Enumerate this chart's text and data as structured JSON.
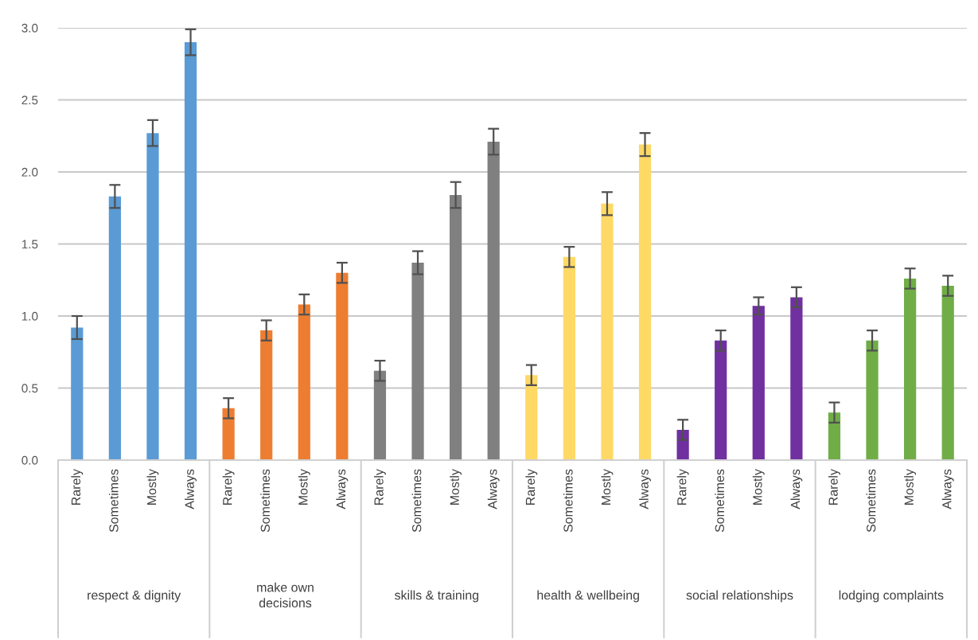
{
  "chart_data": {
    "type": "bar",
    "categories": [
      "Rarely",
      "Sometimes",
      "Mostly",
      "Always",
      "Rarely",
      "Sometimes",
      "Mostly",
      "Always",
      "Rarely",
      "Sometimes",
      "Mostly",
      "Always",
      "Rarely",
      "Sometimes",
      "Mostly",
      "Always",
      "Rarely",
      "Sometimes",
      "Mostly",
      "Always",
      "Rarely",
      "Sometimes",
      "Mostly",
      "Always"
    ],
    "values": [
      0.92,
      1.83,
      2.27,
      2.9,
      0.36,
      0.9,
      1.08,
      1.3,
      0.62,
      1.37,
      1.84,
      2.21,
      0.59,
      1.41,
      1.78,
      2.19,
      0.21,
      0.83,
      1.07,
      1.13,
      0.33,
      0.83,
      1.26,
      1.21
    ],
    "errors": [
      0.08,
      0.08,
      0.09,
      0.09,
      0.07,
      0.07,
      0.07,
      0.07,
      0.07,
      0.08,
      0.09,
      0.09,
      0.07,
      0.07,
      0.08,
      0.08,
      0.07,
      0.07,
      0.06,
      0.07,
      0.07,
      0.07,
      0.07,
      0.07
    ],
    "colors": [
      "#5b9bd5",
      "#5b9bd5",
      "#5b9bd5",
      "#5b9bd5",
      "#ed7d31",
      "#ed7d31",
      "#ed7d31",
      "#ed7d31",
      "#808080",
      "#808080",
      "#808080",
      "#808080",
      "#ffd966",
      "#ffd966",
      "#ffd966",
      "#ffd966",
      "#7030a0",
      "#7030a0",
      "#7030a0",
      "#7030a0",
      "#70ad47",
      "#70ad47",
      "#70ad47",
      "#70ad47"
    ],
    "annotations": [
      "respect & dignity",
      "make own\ndecisions",
      "skills & training",
      "health & wellbeing",
      "social relationships",
      "lodging complaints"
    ],
    "ylim": [
      0,
      3.0
    ],
    "yticks": [
      {
        "value": 0,
        "label": "0.0"
      },
      {
        "value": 0.5,
        "label": "0.5"
      },
      {
        "value": 1.0,
        "label": "1.0"
      },
      {
        "value": 1.5,
        "label": "1.5"
      },
      {
        "value": 2.0,
        "label": "2.0"
      },
      {
        "value": 2.5,
        "label": "2.5"
      },
      {
        "value": 3.0,
        "label": "3.0"
      }
    ],
    "grid": "y",
    "legend": false
  }
}
